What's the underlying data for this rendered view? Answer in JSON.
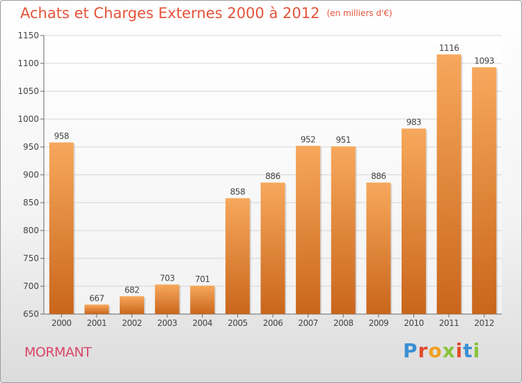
{
  "header": {
    "title": "Achats et Charges Externes 2000 à 2012",
    "unit": "(en milliers d'€)"
  },
  "footer": {
    "commune": "MORMANT",
    "logo_letters": [
      "P",
      "r",
      "o",
      "x",
      "i",
      "t",
      "i"
    ],
    "logo_colors": [
      "#3a8fd6",
      "#e24b2e",
      "#f0a020",
      "#8ac23a",
      "#e24b2e",
      "#3a8fd6",
      "#8ac23a"
    ]
  },
  "colors": {
    "bar_top": "#f7a85c",
    "bar_bottom": "#c9661c",
    "grid": "#d4d4d4",
    "axis": "#666666",
    "text": "#444444",
    "title": "#e5533a",
    "commune": "#d9456a"
  },
  "chart_data": {
    "type": "bar",
    "title": "Achats et Charges Externes 2000 à 2012",
    "subtitle": "(en milliers d'€)",
    "xlabel": "",
    "ylabel": "",
    "categories": [
      "2000",
      "2001",
      "2002",
      "2003",
      "2004",
      "2005",
      "2006",
      "2007",
      "2008",
      "2009",
      "2010",
      "2011",
      "2012"
    ],
    "values": [
      958,
      667,
      682,
      703,
      701,
      858,
      886,
      952,
      951,
      886,
      983,
      1116,
      1093
    ],
    "ylim": [
      650,
      1150
    ],
    "yticks": [
      650,
      700,
      750,
      800,
      850,
      900,
      950,
      1000,
      1050,
      1100,
      1150
    ],
    "grid": true,
    "legend": "none"
  }
}
